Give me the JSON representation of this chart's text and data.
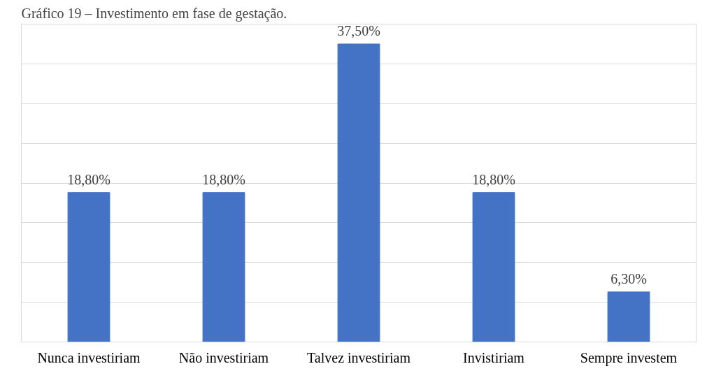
{
  "chart_data": {
    "type": "bar",
    "title": "Gráfico 19 – Investimento em fase de gestação.",
    "categories": [
      "Nunca investiriam",
      "Não investiriam",
      "Talvez investiriam",
      "Invistiriam",
      "Sempre investem"
    ],
    "values": [
      18.8,
      18.8,
      37.5,
      18.8,
      6.3
    ],
    "value_labels": [
      "18,80%",
      "18,80%",
      "37,50%",
      "18,80%",
      "6,30%"
    ],
    "color": "#4472c4",
    "ylim": [
      0,
      40
    ],
    "yticks": [
      {
        "value": 0,
        "label": null
      },
      {
        "value": 5,
        "label": null
      },
      {
        "value": 10,
        "label": null
      },
      {
        "value": 15,
        "label": null
      },
      {
        "value": 20,
        "label": null
      },
      {
        "value": 25,
        "label": null
      },
      {
        "value": 30,
        "label": null
      },
      {
        "value": 35,
        "label": null
      },
      {
        "value": 40,
        "label": null
      }
    ],
    "grid": "y",
    "tick_labels": "x"
  }
}
